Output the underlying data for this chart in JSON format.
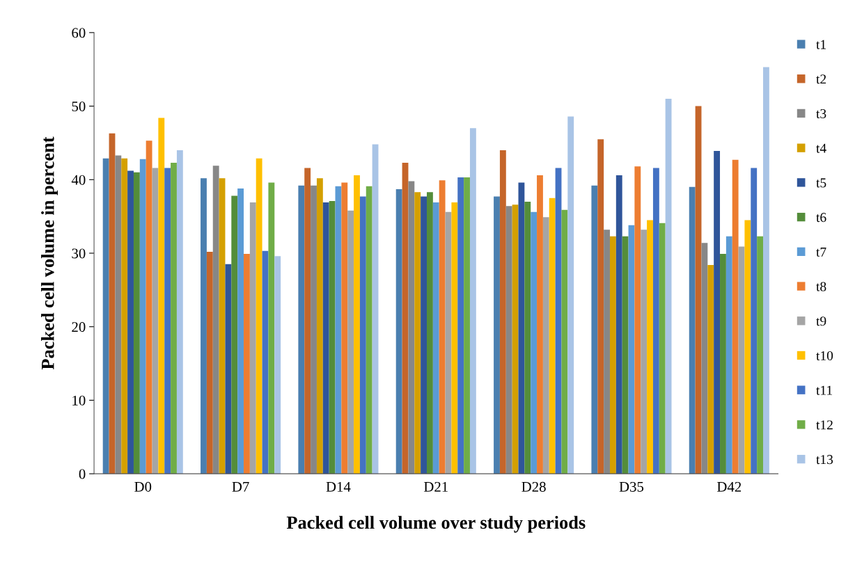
{
  "chart_data": {
    "type": "bar",
    "xlabel": "Packed cell volume over study periods",
    "ylabel": "Packed cell volume in percent",
    "categories": [
      "D0",
      "D7",
      "D14",
      "D21",
      "D28",
      "D35",
      "D42"
    ],
    "ylim": [
      0,
      60
    ],
    "yticks": [
      0,
      10,
      20,
      30,
      40,
      50,
      60
    ],
    "grid": false,
    "legend": "right",
    "series": [
      {
        "name": "t1",
        "color": "#4a7fb0",
        "values": [
          42.9,
          40.2,
          39.2,
          38.7,
          37.7,
          39.2,
          39.0
        ]
      },
      {
        "name": "t2",
        "color": "#c5652a",
        "values": [
          46.3,
          30.2,
          41.6,
          42.3,
          44.0,
          45.5,
          50.0
        ]
      },
      {
        "name": "t3",
        "color": "#878787",
        "values": [
          43.3,
          41.9,
          39.2,
          39.8,
          36.4,
          33.2,
          31.4
        ]
      },
      {
        "name": "t4",
        "color": "#d4a000",
        "values": [
          42.9,
          40.2,
          40.2,
          38.3,
          36.6,
          32.3,
          28.4
        ]
      },
      {
        "name": "t5",
        "color": "#2f559a",
        "values": [
          41.2,
          28.5,
          36.9,
          37.7,
          39.6,
          40.6,
          43.9
        ]
      },
      {
        "name": "t6",
        "color": "#548d3a",
        "values": [
          41.0,
          37.8,
          37.1,
          38.3,
          37.0,
          32.3,
          29.9
        ]
      },
      {
        "name": "t7",
        "color": "#5b9bd5",
        "values": [
          42.8,
          38.8,
          39.1,
          36.9,
          35.6,
          33.8,
          32.3
        ]
      },
      {
        "name": "t8",
        "color": "#ed7d31",
        "values": [
          45.3,
          29.9,
          39.6,
          39.9,
          40.6,
          41.8,
          42.7
        ]
      },
      {
        "name": "t9",
        "color": "#a5a5a5",
        "values": [
          41.6,
          36.9,
          35.8,
          35.6,
          34.9,
          33.2,
          30.9
        ]
      },
      {
        "name": "t10",
        "color": "#ffc000",
        "values": [
          48.4,
          42.9,
          40.6,
          36.9,
          37.5,
          34.5,
          34.5
        ]
      },
      {
        "name": "t11",
        "color": "#4472c4",
        "values": [
          41.6,
          30.3,
          37.7,
          40.3,
          41.6,
          41.6,
          41.6
        ]
      },
      {
        "name": "t12",
        "color": "#70ad47",
        "values": [
          42.3,
          39.6,
          39.1,
          40.3,
          35.9,
          34.1,
          32.3
        ]
      },
      {
        "name": "t13",
        "color": "#a9c4e6",
        "values": [
          44.0,
          29.6,
          44.8,
          47.0,
          48.6,
          51.0,
          55.3
        ]
      }
    ]
  }
}
